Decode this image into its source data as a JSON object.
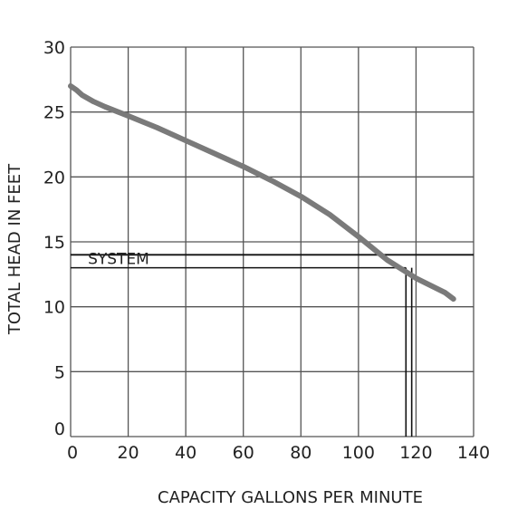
{
  "chart_data": {
    "type": "line",
    "xlabel": "CAPACITY GALLONS PER MINUTE",
    "ylabel": "TOTAL HEAD IN FEET",
    "xlim": [
      0,
      140
    ],
    "ylim": [
      0,
      30
    ],
    "x_ticks": [
      "0",
      "20",
      "40",
      "60",
      "80",
      "100",
      "120",
      "140"
    ],
    "y_ticks": [
      "0",
      "5",
      "10",
      "15",
      "20",
      "25",
      "30"
    ],
    "grid": true,
    "series": [
      {
        "x": [
          0,
          2,
          4,
          8,
          12,
          20,
          30,
          40,
          50,
          60,
          70,
          80,
          90,
          100,
          110,
          120,
          130,
          133
        ],
        "y": [
          27,
          26.7,
          26.3,
          25.8,
          25.4,
          24.7,
          23.8,
          22.8,
          21.8,
          20.8,
          19.7,
          18.5,
          17.1,
          15.4,
          13.6,
          12.2,
          11.1,
          10.6
        ],
        "color": "#7a7a7a"
      }
    ],
    "annotations": {
      "system_label": "SYSTEM",
      "system_line_y": 14,
      "operating_line_y": 13,
      "intersection_x": [
        116.5,
        118.5
      ]
    }
  }
}
